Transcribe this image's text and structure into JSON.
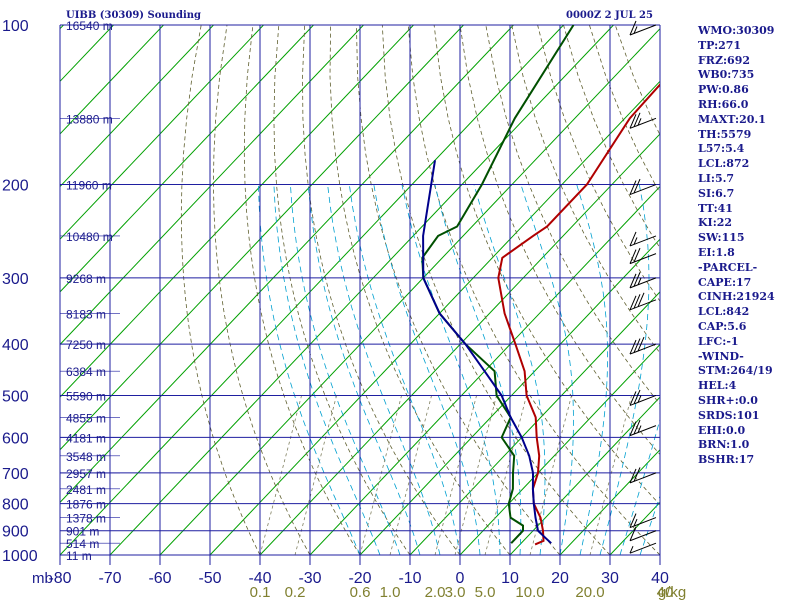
{
  "header": {
    "station": "UIBB (30309) Sounding",
    "datetime": "0000Z  2 JUL 25"
  },
  "colors": {
    "grid": "#1f1fa0",
    "isotherm": "#00a000",
    "dry_adiabat": "#606030",
    "moist_adiabat": "#00a0d0",
    "mixing_ratio": "#808060",
    "temperature": "#b00000",
    "dewpoint": "#005000",
    "parcel": "#00008c",
    "text": "#1a1a8c",
    "mix_label": "#808030"
  },
  "stats": [
    "WMO:30309",
    "TP:271",
    "FRZ:692",
    "WB0:735",
    "PW:0.86",
    "RH:66.0",
    "MAXT:20.1",
    "TH:5579",
    "L57:5.4",
    "LCL:872",
    "LI:5.7",
    "SI:6.7",
    "TT:41",
    "KI:22",
    "SW:115",
    "EI:1.8",
    "-PARCEL-",
    "CAPE:17",
    "CINH:21924",
    "LCL:842",
    "CAP:5.6",
    "LFC:-1",
    "-WIND-",
    "STM:264/19",
    "HEL:4",
    "SHR+:0.0",
    "SRDS:101",
    "EHI:0.0",
    "BRN:1.0",
    "BSHR:17"
  ],
  "axis": {
    "unit_label": "mb",
    "mixing_unit": "g/kg"
  },
  "chart_data": {
    "type": "line",
    "title": "UIBB (30309) Sounding",
    "pressure_levels": [
      100,
      200,
      300,
      400,
      500,
      600,
      700,
      800,
      900,
      1000
    ],
    "pressure_labels": [
      "100",
      "200",
      "300",
      "400",
      "500",
      "600",
      "700",
      "800",
      "900",
      "1000"
    ],
    "temperature_ticks": [
      -80,
      -70,
      -60,
      -50,
      -40,
      -30,
      -20,
      -10,
      0,
      10,
      20,
      30,
      40
    ],
    "temperature_tick_labels": [
      "-80",
      "-70",
      "-60",
      "-50",
      "-40",
      "-30",
      "-20",
      "-10",
      "0",
      "10",
      "20",
      "30",
      "40"
    ],
    "mixing_ratio_labels": [
      "0.1",
      "0.2",
      "0.6",
      "1.0",
      "2.0",
      "3.0",
      "5.0",
      "10.0",
      "20.0",
      "40"
    ],
    "mixing_ratio_positions": [
      -40,
      -33,
      -20,
      -14,
      -5,
      -1,
      5,
      14,
      26,
      41
    ],
    "height_labels": [
      {
        "p": 100,
        "label": "16540 m"
      },
      {
        "p": 150,
        "label": "13880 m"
      },
      {
        "p": 200,
        "label": "11960 m"
      },
      {
        "p": 250,
        "label": "10480 m"
      },
      {
        "p": 300,
        "label": "9268 m"
      },
      {
        "p": 350,
        "label": "8183 m"
      },
      {
        "p": 400,
        "label": "7250 m"
      },
      {
        "p": 450,
        "label": "6384 m"
      },
      {
        "p": 500,
        "label": "5590 m"
      },
      {
        "p": 550,
        "label": "4855 m"
      },
      {
        "p": 600,
        "label": "4181 m"
      },
      {
        "p": 650,
        "label": "3548 m"
      },
      {
        "p": 700,
        "label": "2957 m"
      },
      {
        "p": 750,
        "label": "2481 m"
      },
      {
        "p": 800,
        "label": "1876 m"
      },
      {
        "p": 850,
        "label": "1378 m"
      },
      {
        "p": 900,
        "label": "901 m"
      },
      {
        "p": 950,
        "label": "514 m"
      },
      {
        "p": 1000,
        "label": "11 m"
      }
    ],
    "series": [
      {
        "key": "temperature",
        "points": [
          [
            100,
            -50
          ],
          [
            150,
            -49
          ],
          [
            200,
            -45
          ],
          [
            240,
            -45
          ],
          [
            250,
            -46
          ],
          [
            275,
            -48
          ],
          [
            300,
            -45
          ],
          [
            350,
            -37
          ],
          [
            400,
            -29
          ],
          [
            450,
            -22
          ],
          [
            500,
            -17
          ],
          [
            550,
            -11
          ],
          [
            600,
            -7
          ],
          [
            650,
            -3
          ],
          [
            700,
            0
          ],
          [
            750,
            2
          ],
          [
            800,
            5
          ],
          [
            850,
            9
          ],
          [
            900,
            12
          ],
          [
            940,
            14
          ],
          [
            955,
            13
          ]
        ]
      },
      {
        "key": "dewpoint",
        "points": [
          [
            100,
            -78
          ],
          [
            150,
            -72
          ],
          [
            200,
            -66
          ],
          [
            240,
            -63
          ],
          [
            250,
            -65
          ],
          [
            275,
            -64
          ],
          [
            300,
            -60
          ],
          [
            350,
            -50
          ],
          [
            400,
            -39
          ],
          [
            450,
            -28
          ],
          [
            500,
            -23
          ],
          [
            550,
            -16
          ],
          [
            600,
            -14
          ],
          [
            650,
            -8
          ],
          [
            700,
            -5
          ],
          [
            750,
            -2
          ],
          [
            800,
            0
          ],
          [
            850,
            3
          ],
          [
            880,
            7
          ],
          [
            900,
            8
          ],
          [
            950,
            8
          ]
        ]
      },
      {
        "key": "parcel",
        "points": [
          [
            180,
            -80
          ],
          [
            250,
            -68
          ],
          [
            300,
            -60
          ],
          [
            350,
            -50
          ],
          [
            400,
            -39
          ],
          [
            450,
            -30
          ],
          [
            500,
            -22
          ],
          [
            550,
            -16
          ],
          [
            600,
            -10
          ],
          [
            650,
            -5
          ],
          [
            700,
            -1
          ],
          [
            750,
            2
          ],
          [
            800,
            5
          ],
          [
            850,
            8
          ],
          [
            900,
            11
          ],
          [
            930,
            14
          ],
          [
            950,
            16
          ]
        ]
      }
    ],
    "wind_barbs": [
      {
        "p": 100,
        "dir": 300,
        "kt": 15
      },
      {
        "p": 150,
        "dir": 290,
        "kt": 25
      },
      {
        "p": 200,
        "dir": 290,
        "kt": 20
      },
      {
        "p": 250,
        "dir": 280,
        "kt": 15
      },
      {
        "p": 270,
        "dir": 280,
        "kt": 20
      },
      {
        "p": 300,
        "dir": 280,
        "kt": 25
      },
      {
        "p": 330,
        "dir": 270,
        "kt": 30
      },
      {
        "p": 400,
        "dir": 270,
        "kt": 30
      },
      {
        "p": 500,
        "dir": 280,
        "kt": 25
      },
      {
        "p": 570,
        "dir": 280,
        "kt": 25
      },
      {
        "p": 700,
        "dir": 270,
        "kt": 20
      },
      {
        "p": 850,
        "dir": 280,
        "kt": 15
      },
      {
        "p": 900,
        "dir": 270,
        "kt": 10
      },
      {
        "p": 950,
        "dir": 260,
        "kt": 5
      }
    ]
  }
}
